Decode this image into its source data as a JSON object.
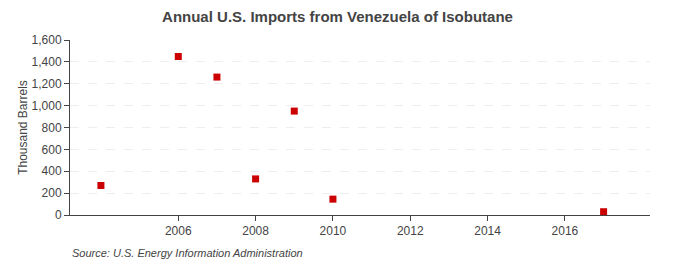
{
  "chart_data": {
    "type": "scatter",
    "title": "Annual U.S. Imports from Venezuela of Isobutane",
    "ylabel": "Thousand Barrels",
    "annotations": [
      "Source: U.S. Energy Information Administration"
    ],
    "x": [
      2004,
      2006,
      2007,
      2008,
      2009,
      2010,
      2017
    ],
    "values": [
      270,
      1449,
      1261,
      330,
      950,
      145,
      30
    ],
    "color": "#cc0000",
    "marker": "square",
    "xlim": [
      2003.2,
      2018.2
    ],
    "xticks": [
      2006,
      2008,
      2010,
      2012,
      2014,
      2016
    ],
    "ylim": [
      0,
      1600
    ],
    "yticks": [
      0,
      200,
      400,
      600,
      800,
      {
        "value": 1000,
        "label": "1,000"
      },
      {
        "value": 1200,
        "label": "1,200"
      },
      {
        "value": 1400,
        "label": "1,400"
      },
      {
        "value": 1600,
        "label": "1,600"
      }
    ],
    "grid": "y"
  }
}
